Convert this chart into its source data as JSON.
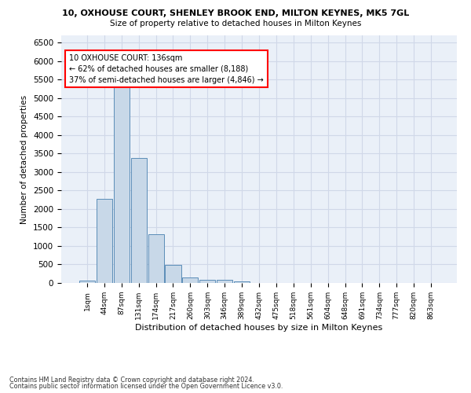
{
  "title1": "10, OXHOUSE COURT, SHENLEY BROOK END, MILTON KEYNES, MK5 7GL",
  "title2": "Size of property relative to detached houses in Milton Keynes",
  "xlabel": "Distribution of detached houses by size in Milton Keynes",
  "ylabel": "Number of detached properties",
  "categories": [
    "1sqm",
    "44sqm",
    "87sqm",
    "131sqm",
    "174sqm",
    "217sqm",
    "260sqm",
    "303sqm",
    "346sqm",
    "389sqm",
    "432sqm",
    "475sqm",
    "518sqm",
    "561sqm",
    "604sqm",
    "648sqm",
    "691sqm",
    "734sqm",
    "777sqm",
    "820sqm",
    "863sqm"
  ],
  "values": [
    70,
    2280,
    5420,
    3390,
    1310,
    480,
    155,
    80,
    80,
    50,
    0,
    0,
    0,
    0,
    0,
    0,
    0,
    0,
    0,
    0,
    0
  ],
  "bar_color": "#c8d8e8",
  "bar_edge_color": "#5b8db8",
  "ylim": [
    0,
    6700
  ],
  "yticks": [
    0,
    500,
    1000,
    1500,
    2000,
    2500,
    3000,
    3500,
    4000,
    4500,
    5000,
    5500,
    6000,
    6500
  ],
  "annotation_text": "10 OXHOUSE COURT: 136sqm\n← 62% of detached houses are smaller (8,188)\n37% of semi-detached houses are larger (4,846) →",
  "annotation_box_color": "white",
  "annotation_border_color": "red",
  "grid_color": "#d0d8e8",
  "background_color": "#eaf0f8",
  "footer1": "Contains HM Land Registry data © Crown copyright and database right 2024.",
  "footer2": "Contains public sector information licensed under the Open Government Licence v3.0."
}
